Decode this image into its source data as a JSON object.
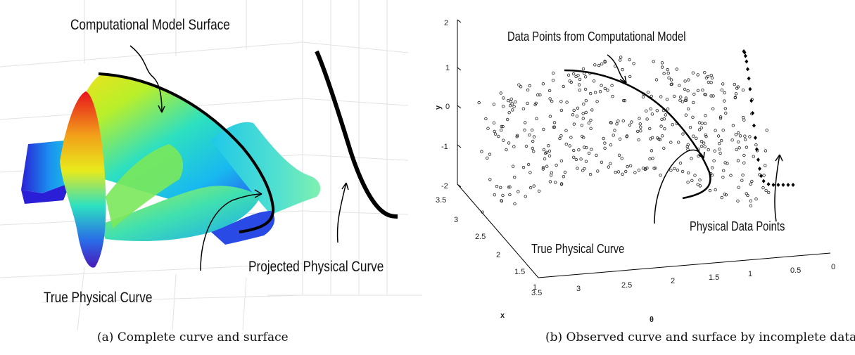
{
  "panel_a": {
    "labels": {
      "surface": "Computational Model Surface",
      "projected": "Projected Physical Curve",
      "true_curve": "True Physical Curve"
    },
    "caption": "(a) Complete curve and surface"
  },
  "panel_b": {
    "labels": {
      "model_points": "Data Points from Computational Model",
      "physical_points": "Physical Data Points",
      "true_curve": "True Physical Curve"
    },
    "axes": {
      "y_name": "y",
      "x_name": "x",
      "theta_name": "θ",
      "y_ticks": [
        "2",
        "1",
        "0",
        "-1",
        "-2"
      ],
      "x_ticks": [
        "3.5",
        "3",
        "2.5",
        "2",
        "1.5",
        "1"
      ],
      "theta_ticks": [
        "3.5",
        "3",
        "2.5",
        "2",
        "1.5",
        "1",
        "0.5",
        "0"
      ]
    },
    "caption": "(b) Observed curve and surface by incomplete data"
  },
  "colors": {
    "surface_low": "#2a1fd6",
    "surface_mid": "#19d8e8",
    "surface_high": "#f2e51a",
    "surface_peak": "#e8141c",
    "curve": "#000000"
  }
}
